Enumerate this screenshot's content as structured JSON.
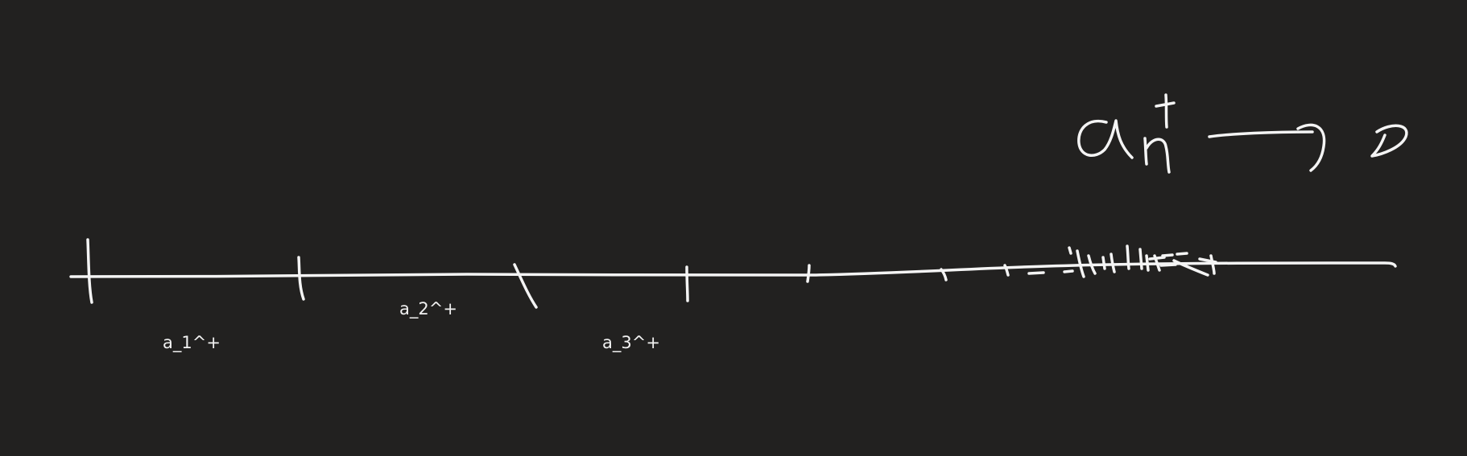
{
  "canvas": {
    "background": "#222120",
    "ink_color": "#f4f4f4"
  },
  "labels": {
    "a1": "a_1^+",
    "a2": "a_2^+",
    "a3": "a_3^+"
  }
}
